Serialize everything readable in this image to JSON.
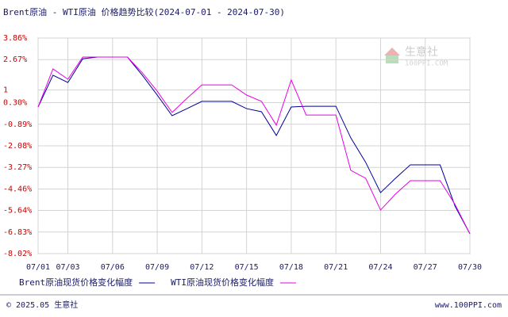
{
  "chart_data": {
    "type": "line",
    "title": "Brent原油 - WTI原油 价格趋势比较(2024-07-01 - 2024-07-30)",
    "categories": [
      "07/01",
      null,
      "07/03",
      null,
      null,
      "07/06",
      null,
      null,
      "07/09",
      null,
      null,
      "07/12",
      null,
      null,
      "07/15",
      null,
      null,
      "07/18",
      null,
      null,
      "07/21",
      null,
      null,
      "07/24",
      null,
      null,
      "07/27",
      null,
      null,
      "07/30"
    ],
    "series": [
      {
        "name": "Brent原油现货价格变化幅度",
        "color": "#000099",
        "values": [
          0.06,
          1.81,
          1.41,
          2.72,
          2.81,
          2.81,
          2.81,
          1.81,
          0.72,
          -0.42,
          -0.03,
          0.37,
          0.37,
          0.37,
          -0.03,
          -0.2,
          -1.51,
          0.06,
          0.1,
          0.1,
          0.1,
          -1.64,
          -2.99,
          -4.66,
          -3.87,
          -3.13,
          -3.13,
          -3.13,
          -5.4,
          -6.93
        ]
      },
      {
        "name": "WTI原油现货价格变化幅度",
        "color": "#e600e6",
        "values": [
          0.06,
          2.16,
          1.59,
          2.81,
          2.81,
          2.81,
          2.81,
          1.94,
          0.93,
          -0.24,
          0.54,
          1.28,
          1.28,
          1.28,
          0.72,
          0.37,
          -0.94,
          1.55,
          -0.38,
          -0.38,
          -0.38,
          -3.43,
          -3.87,
          -5.62,
          -4.74,
          -4,
          -4,
          -4,
          -5.31,
          -6.93
        ]
      }
    ],
    "ylim": [
      -8.02,
      3.86
    ],
    "yticks": [
      {
        "value": 3.86,
        "label": "3.86%"
      },
      {
        "value": 2.67,
        "label": "2.67%"
      },
      1,
      {
        "value": 0.3,
        "label": "0.30%"
      },
      {
        "value": -0.89,
        "label": "-0.89%"
      },
      {
        "value": -2.08,
        "label": "-2.08%"
      },
      {
        "value": -3.27,
        "label": "-3.27%"
      },
      {
        "value": -4.46,
        "label": "-4.46%"
      },
      {
        "value": -5.64,
        "label": "-5.64%"
      },
      {
        "value": -6.83,
        "label": "-6.83%"
      },
      {
        "value": -8.02,
        "label": "-8.02%"
      }
    ],
    "grid": true
  },
  "watermark": {
    "name": "生意社",
    "site": "100PPI.COM"
  },
  "footer": {
    "copyright": "© 2025.05 生意社",
    "site": "www.100PPI.com"
  }
}
